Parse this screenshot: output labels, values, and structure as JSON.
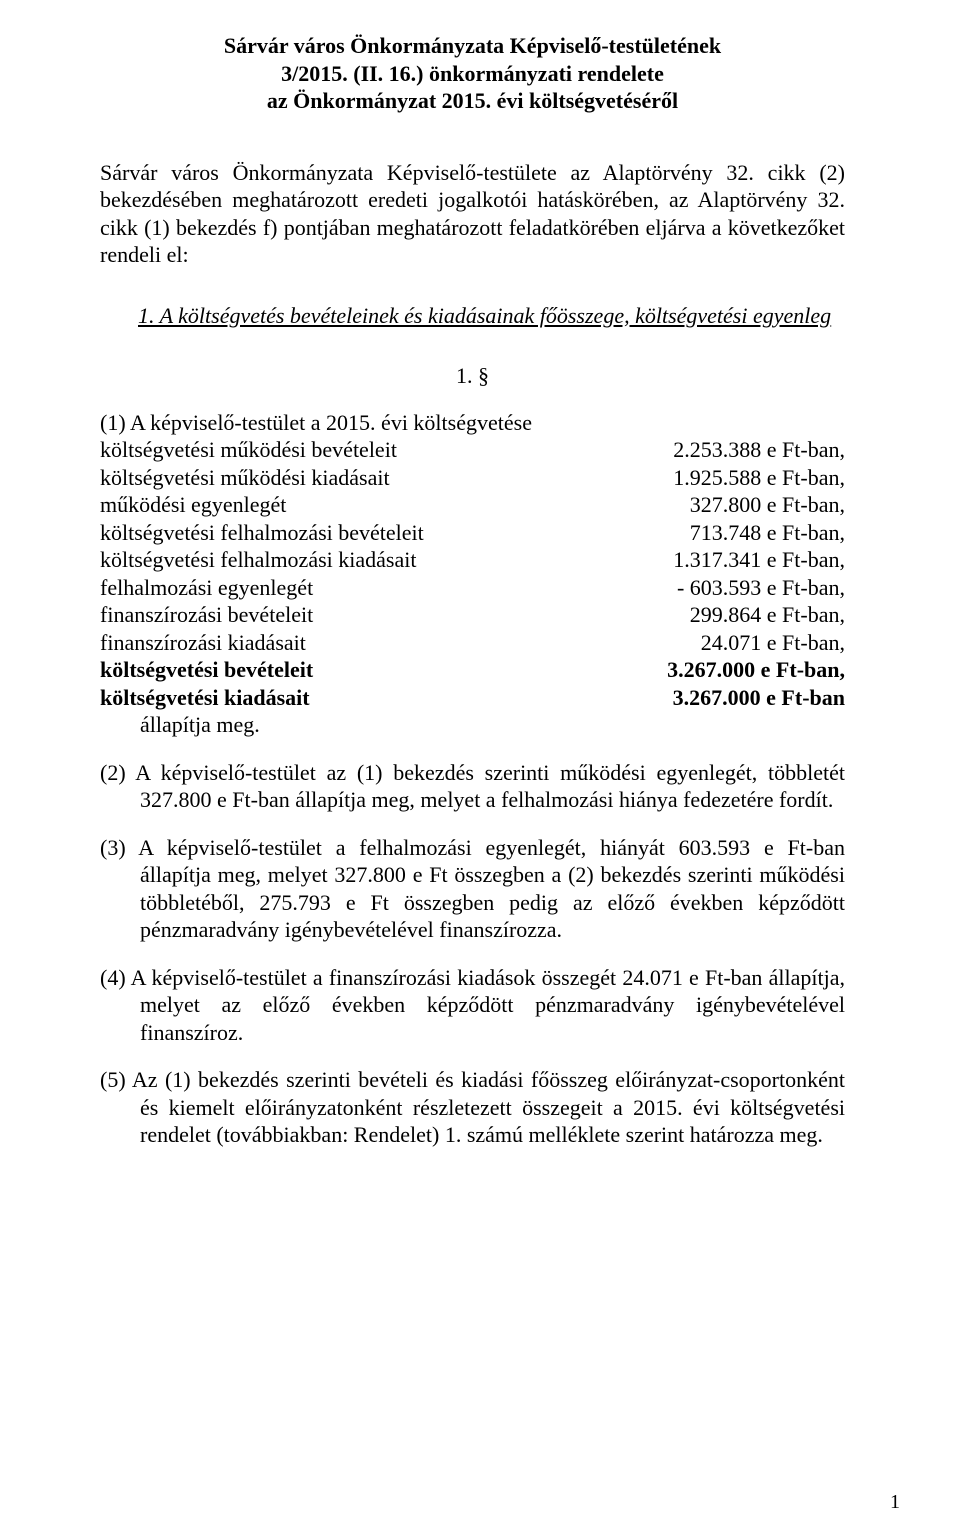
{
  "title": {
    "line1": "Sárvár város Önkormányzata Képviselő-testületének",
    "line2": "3/2015. (II. 16.) önkormányzati rendelete",
    "line3": "az Önkormányzat 2015. évi költségvetéséről"
  },
  "intro": "Sárvár város Önkormányzata Képviselő-testülete az Alaptörvény 32. cikk (2) bekezdésében meghatározott eredeti jogalkotói hatáskörében, az Alaptörvény 32. cikk (1) bekezdés f) pontjában meghatározott feladatkörében eljárva a következőket rendeli el:",
  "section_heading": "1.  A költségvetés bevételeinek és kiadásainak főösszege, költségvetési egyenleg",
  "section_number": "1. §",
  "list_intro": "(1) A képviselő-testület a 2015. évi költségvetése",
  "budget_rows": [
    {
      "label": "költségvetési működési bevételeit",
      "value": "2.253.388 e Ft-ban,",
      "bold": false
    },
    {
      "label": "költségvetési működési kiadásait",
      "value": "1.925.588 e Ft-ban,",
      "bold": false
    },
    {
      "label": "működési egyenlegét",
      "value": "327.800 e Ft-ban,",
      "bold": false
    },
    {
      "label": "költségvetési felhalmozási bevételeit",
      "value": "713.748 e Ft-ban,",
      "bold": false
    },
    {
      "label": "költségvetési felhalmozási kiadásait",
      "value": "1.317.341 e Ft-ban,",
      "bold": false
    },
    {
      "label": "felhalmozási egyenlegét",
      "value": "-   603.593 e Ft-ban,",
      "bold": false
    },
    {
      "label": "finanszírozási bevételeit",
      "value": "299.864 e Ft-ban,",
      "bold": false
    },
    {
      "label": "finanszírozási kiadásait",
      "value": "24.071 e Ft-ban,",
      "bold": false
    },
    {
      "label": "költségvetési bevételeit",
      "value": "3.267.000 e Ft-ban,",
      "bold": true
    },
    {
      "label": "költségvetési kiadásait",
      "value": "3.267.000 e Ft-ban",
      "bold": true
    }
  ],
  "list_outro": "állapítja meg.",
  "para2": "(2) A képviselő-testület az (1) bekezdés szerinti működési egyenlegét, többletét 327.800 e Ft-ban állapítja meg, melyet a felhalmozási hiánya fedezetére fordít.",
  "para3": "(3) A képviselő-testület a felhalmozási egyenlegét, hiányát 603.593 e Ft-ban állapítja meg, melyet 327.800 e Ft összegben a (2) bekezdés szerinti működési többletéből, 275.793 e Ft összegben pedig az előző években képződött pénzmaradvány igénybevételével finanszírozza.",
  "para4": "(4) A képviselő-testület a finanszírozási kiadások összegét 24.071 e Ft-ban állapítja, melyet az előző években képződött pénzmaradvány igénybevételével finanszíroz.",
  "para5": "(5) Az (1) bekezdés szerinti bevételi és kiadási főösszeg előirányzat-csoportonként és kiemelt előirányzatonként részletezett összegeit a 2015. évi költségvetési rendelet (továbbiakban: Rendelet) 1. számú melléklete szerint határozza meg.",
  "page_number": "1"
}
